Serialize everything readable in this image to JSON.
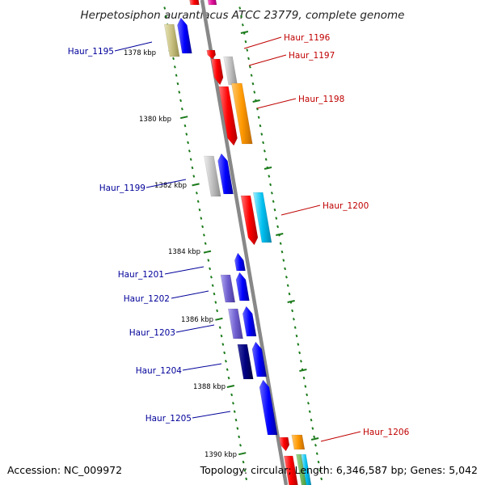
{
  "title": "Herpetosiphon aurantiacus ATCC 23779, complete genome",
  "footer": {
    "accession": "Accession: NC_009972",
    "summary": "Topology: circular; Length: 6,346,587 bp; Genes: 5,042"
  },
  "scale": {
    "labels": [
      "1378 kbp",
      "1380 kbp",
      "1382 kbp",
      "1384 kbp",
      "1386 kbp",
      "1388 kbp",
      "1390 kbp"
    ]
  },
  "genes_forward": [
    {
      "name": "Haur_1196"
    },
    {
      "name": "Haur_1197"
    },
    {
      "name": "Haur_1198"
    },
    {
      "name": "Haur_1200"
    },
    {
      "name": "Haur_1206"
    }
  ],
  "genes_reverse": [
    {
      "name": "Haur_1195"
    },
    {
      "name": "Haur_1199"
    },
    {
      "name": "Haur_1201"
    },
    {
      "name": "Haur_1202"
    },
    {
      "name": "Haur_1203"
    },
    {
      "name": "Haur_1204"
    },
    {
      "name": "Haur_1205"
    }
  ],
  "colors": {
    "backbone": "#888888",
    "tick": "#1a7a1a",
    "forward_label": "#c00000",
    "reverse_label": "#00009a",
    "red": "#ff0000",
    "orange": "#ff9900",
    "cyan": "#00c0f0",
    "blue": "#0000ff",
    "navy": "#000080",
    "slate": "#7060d0",
    "khaki": "#c8c080",
    "gray": "#c0c0c0",
    "magenta": "#e0109a"
  }
}
